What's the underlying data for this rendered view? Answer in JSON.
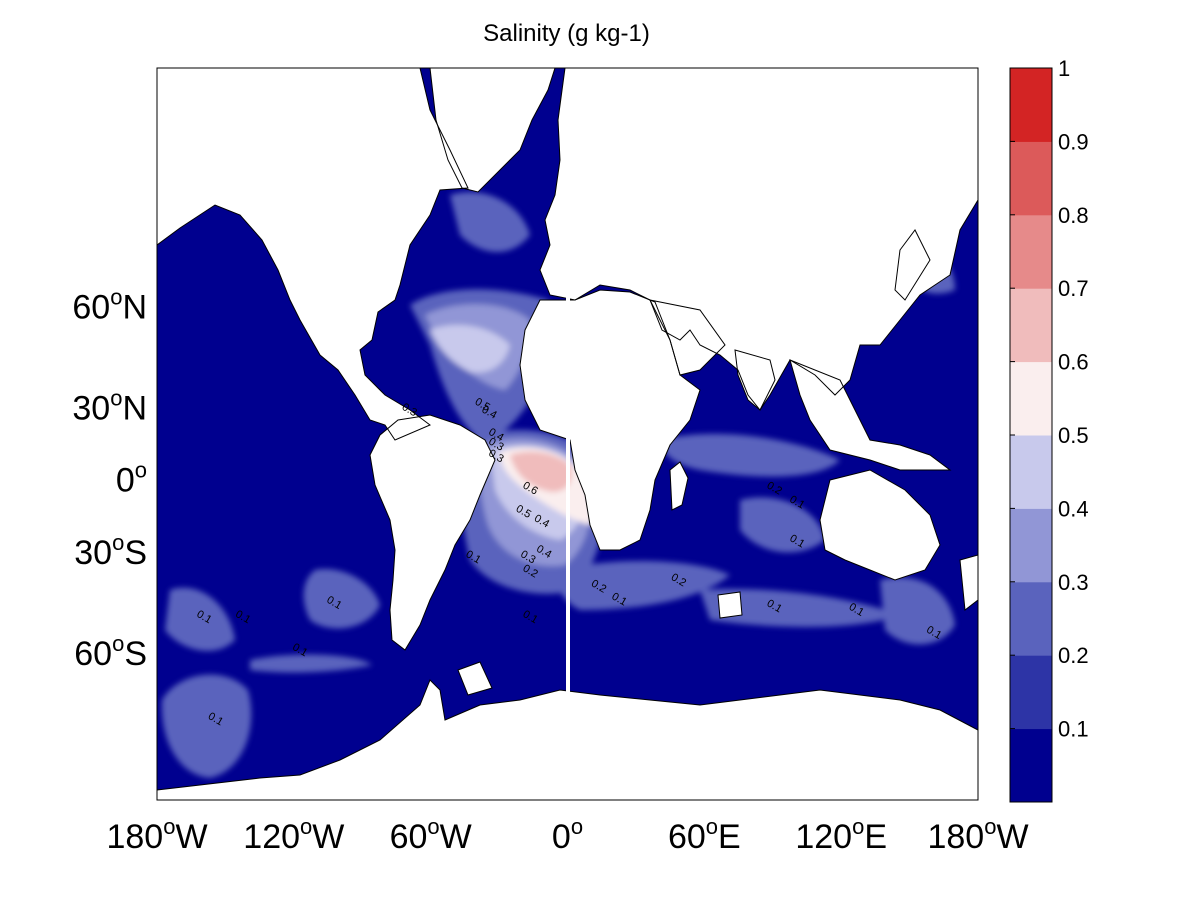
{
  "map_data": {
    "title": "Salinity (g kg-1)",
    "projection": "mercator",
    "lon_range": [
      -180,
      180
    ],
    "lat_range": [
      -80,
      85
    ],
    "lon_ticks": [
      {
        "lon": -180,
        "deg": "180",
        "hemi": "W"
      },
      {
        "lon": -120,
        "deg": "120",
        "hemi": "W"
      },
      {
        "lon": -60,
        "deg": "60",
        "hemi": "W"
      },
      {
        "lon": 0,
        "deg": "0",
        "hemi": ""
      },
      {
        "lon": 60,
        "deg": "60",
        "hemi": "E"
      },
      {
        "lon": 120,
        "deg": "120",
        "hemi": "E"
      },
      {
        "lon": 180,
        "deg": "180",
        "hemi": "W"
      }
    ],
    "lat_ticks": [
      {
        "lat": 60,
        "deg": "60",
        "hemi": "N"
      },
      {
        "lat": 30,
        "deg": "30",
        "hemi": "N"
      },
      {
        "lat": 0,
        "deg": "0",
        "hemi": ""
      },
      {
        "lat": -30,
        "deg": "30",
        "hemi": "S"
      },
      {
        "lat": -60,
        "deg": "60",
        "hemi": "S"
      }
    ],
    "colorbar": {
      "levels": [
        0,
        0.1,
        0.2,
        0.3,
        0.4,
        0.5,
        0.6,
        0.7,
        0.8,
        0.9,
        1
      ],
      "labels": [
        "0.1",
        "0.2",
        "0.3",
        "0.4",
        "0.5",
        "0.6",
        "0.7",
        "0.8",
        "0.9",
        "1"
      ],
      "colors": [
        "#00008f",
        "#2d34a6",
        "#5a63bd",
        "#9196d6",
        "#c8c9ec",
        "#faeeee",
        "#f0bcbc",
        "#e68a8a",
        "#dc5a5a",
        "#d32424"
      ]
    },
    "land_color": "#ffffff",
    "ocean_base_color": "#00008f",
    "contour_labels": [
      {
        "text": "0.3",
        "lon": -70,
        "lat": 28
      },
      {
        "text": "0.5",
        "lon": -38,
        "lat": 30
      },
      {
        "text": "0.4",
        "lon": -35,
        "lat": 27
      },
      {
        "text": "0.4",
        "lon": -32,
        "lat": 18
      },
      {
        "text": "0.3",
        "lon": -32,
        "lat": 14
      },
      {
        "text": "0.3",
        "lon": -32,
        "lat": 9
      },
      {
        "text": "0.6",
        "lon": -17,
        "lat": -5
      },
      {
        "text": "0.5",
        "lon": -20,
        "lat": -15
      },
      {
        "text": "0.4",
        "lon": -12,
        "lat": -19
      },
      {
        "text": "0.3",
        "lon": -18,
        "lat": -33
      },
      {
        "text": "0.4",
        "lon": -11,
        "lat": -31
      },
      {
        "text": "0.2",
        "lon": -17,
        "lat": -38
      },
      {
        "text": "0.1",
        "lon": -42,
        "lat": -33
      },
      {
        "text": "0.2",
        "lon": 13,
        "lat": -43
      },
      {
        "text": "0.1",
        "lon": 22,
        "lat": -47
      },
      {
        "text": "0.2",
        "lon": 48,
        "lat": -41
      },
      {
        "text": "0.2",
        "lon": 90,
        "lat": -5
      },
      {
        "text": "0.1",
        "lon": 100,
        "lat": -11
      },
      {
        "text": "0.1",
        "lon": 100,
        "lat": -27
      },
      {
        "text": "0.1",
        "lon": 90,
        "lat": -49
      },
      {
        "text": "0.1",
        "lon": 126,
        "lat": -50
      },
      {
        "text": "0.1",
        "lon": -103,
        "lat": -48
      },
      {
        "text": "0.1",
        "lon": -160,
        "lat": -52
      },
      {
        "text": "0.1",
        "lon": -143,
        "lat": -52
      },
      {
        "text": "0.1",
        "lon": -118,
        "lat": -60
      },
      {
        "text": "0.1",
        "lon": -155,
        "lat": -72
      },
      {
        "text": "0.1",
        "lon": -17,
        "lat": -52
      },
      {
        "text": "0.1",
        "lon": 160,
        "lat": -56
      }
    ]
  }
}
